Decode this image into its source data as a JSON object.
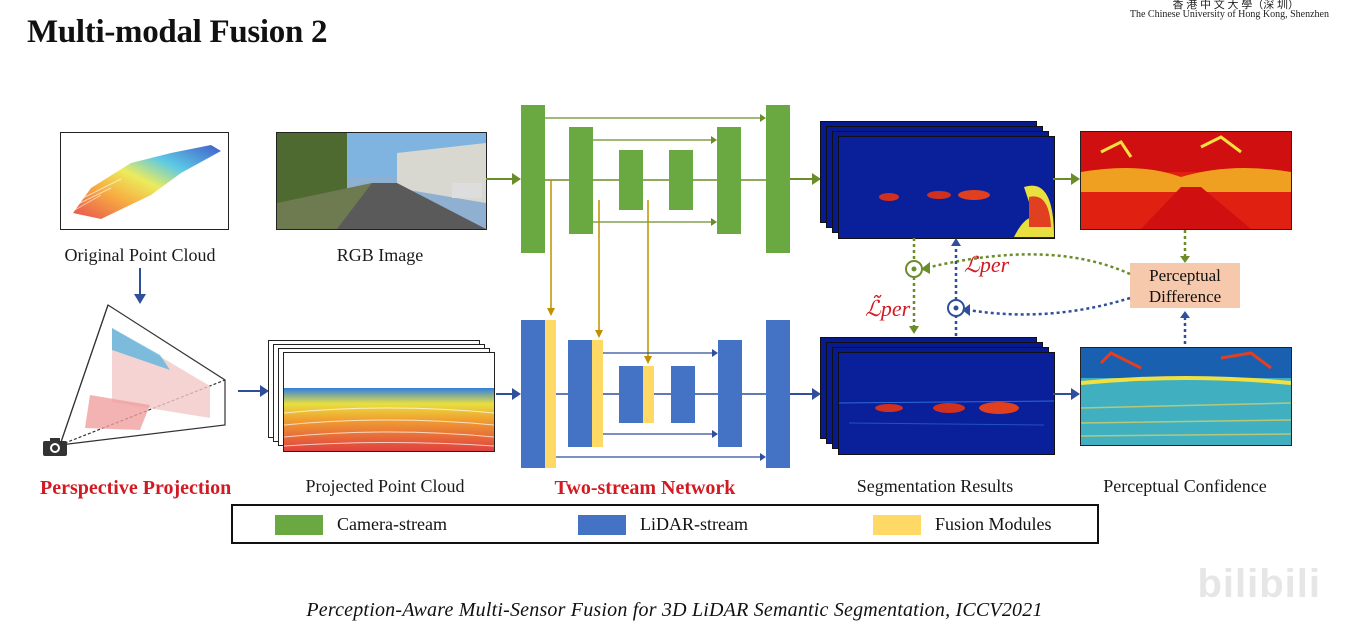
{
  "title": "Multi-modal Fusion 2",
  "university": {
    "chinese": "香 港 中 文 大 學（深 圳）",
    "english": "The Chinese University of Hong Kong, Shenzhen"
  },
  "labels": {
    "original_point_cloud": "Original Point Cloud",
    "rgb_image": "RGB Image",
    "perspective_projection": "Perspective Projection",
    "projected_point_cloud": "Projected Point Cloud",
    "two_stream_network": "Two-stream Network",
    "segmentation_results": "Segmentation Results",
    "perceptual_confidence": "Perceptual Confidence",
    "perceptual_difference": "Perceptual Difference",
    "loss_per": "ℒper",
    "loss_per_tilde": "ℒ̃per"
  },
  "legend": [
    {
      "label": "Camera-stream",
      "color": "#6aa842"
    },
    {
      "label": "LiDAR-stream",
      "color": "#4472c4"
    },
    {
      "label": "Fusion Modules",
      "color": "#ffd966"
    }
  ],
  "colors": {
    "camera": "#6aa842",
    "lidar": "#4472c4",
    "fusion": "#ffd966",
    "fusion_arrow": "#bf9000",
    "loss_red": "#d21a22",
    "dotted_green": "#6a8d2a",
    "dotted_blue": "#2f4f9a"
  },
  "citation": "Perception-Aware Multi-Sensor Fusion for 3D LiDAR Semantic Segmentation, ICCV2021",
  "watermark": "bilibili"
}
